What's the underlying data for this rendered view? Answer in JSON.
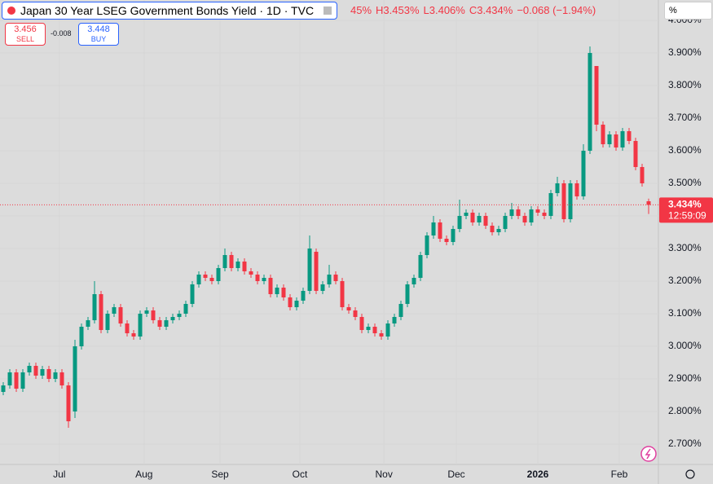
{
  "chart_data": {
    "type": "candlestick",
    "title": "Japan 30 Year LSEG Government Bonds Yield · 1D · TVC",
    "ohlc_legend": [
      "45%",
      "H3.453%",
      "L3.406%",
      "C3.434%",
      "−0.068 (−1.94%)"
    ],
    "sell": {
      "price": "3.456",
      "label": "SELL"
    },
    "spread": "-0.008",
    "buy": {
      "price": "3.448",
      "label": "BUY"
    },
    "scale_button": "%",
    "last_price": {
      "value": 3.434,
      "label": "3.434%"
    },
    "countdown": "12:59:09",
    "up_color": "#089981",
    "down_color": "#f23645",
    "open": [
      2.86,
      2.88,
      2.92,
      2.87,
      2.92,
      2.94,
      2.91,
      2.93,
      2.9,
      2.92,
      2.88,
      2.8,
      3.0,
      3.06,
      3.08,
      3.16,
      3.05,
      3.1,
      3.12,
      3.07,
      3.04,
      3.03,
      3.1,
      3.11,
      3.08,
      3.06,
      3.08,
      3.09,
      3.1,
      3.13,
      3.19,
      3.22,
      3.21,
      3.2,
      3.24,
      3.28,
      3.24,
      3.26,
      3.23,
      3.22,
      3.2,
      3.21,
      3.16,
      3.18,
      3.15,
      3.12,
      3.14,
      3.17,
      3.29,
      3.17,
      3.19,
      3.22,
      3.2,
      3.12,
      3.11,
      3.09,
      3.05,
      3.06,
      3.04,
      3.03,
      3.07,
      3.09,
      3.13,
      3.19,
      3.21,
      3.28,
      3.34,
      3.38,
      3.33,
      3.32,
      3.36,
      3.4,
      3.41,
      3.38,
      3.4,
      3.37,
      3.35,
      3.36,
      3.4,
      3.42,
      3.4,
      3.38,
      3.42,
      3.41,
      3.4,
      3.47,
      3.5,
      3.39,
      3.5,
      3.46,
      3.6,
      3.86,
      3.68,
      3.62,
      3.65,
      3.61,
      3.66,
      3.63,
      3.55,
      3.445
    ],
    "high": [
      2.89,
      2.93,
      2.93,
      2.93,
      2.95,
      2.95,
      2.94,
      2.94,
      2.93,
      2.93,
      2.89,
      3.02,
      3.07,
      3.09,
      3.2,
      3.17,
      3.11,
      3.13,
      3.13,
      3.08,
      3.05,
      3.11,
      3.12,
      3.12,
      3.09,
      3.09,
      3.1,
      3.11,
      3.14,
      3.2,
      3.23,
      3.23,
      3.22,
      3.25,
      3.3,
      3.29,
      3.27,
      3.27,
      3.24,
      3.23,
      3.22,
      3.22,
      3.19,
      3.19,
      3.16,
      3.15,
      3.18,
      3.34,
      3.3,
      3.2,
      3.25,
      3.23,
      3.21,
      3.13,
      3.12,
      3.1,
      3.07,
      3.07,
      3.05,
      3.08,
      3.1,
      3.14,
      3.2,
      3.22,
      3.29,
      3.35,
      3.4,
      3.39,
      3.34,
      3.37,
      3.45,
      3.42,
      3.42,
      3.41,
      3.41,
      3.38,
      3.37,
      3.41,
      3.44,
      3.43,
      3.41,
      3.43,
      3.43,
      3.42,
      3.48,
      3.52,
      3.51,
      3.51,
      3.51,
      3.62,
      3.92,
      3.86,
      3.69,
      3.66,
      3.66,
      3.67,
      3.67,
      3.64,
      3.56,
      3.453
    ],
    "low": [
      2.85,
      2.87,
      2.86,
      2.86,
      2.91,
      2.9,
      2.9,
      2.89,
      2.89,
      2.87,
      2.75,
      2.78,
      2.99,
      3.05,
      3.07,
      3.04,
      3.04,
      3.09,
      3.06,
      3.03,
      3.02,
      3.02,
      3.09,
      3.07,
      3.05,
      3.05,
      3.07,
      3.08,
      3.09,
      3.12,
      3.18,
      3.2,
      3.19,
      3.19,
      3.23,
      3.23,
      3.23,
      3.22,
      3.21,
      3.19,
      3.19,
      3.15,
      3.15,
      3.14,
      3.11,
      3.11,
      3.13,
      3.16,
      3.16,
      3.16,
      3.18,
      3.19,
      3.11,
      3.1,
      3.08,
      3.04,
      3.04,
      3.03,
      3.02,
      3.02,
      3.06,
      3.08,
      3.12,
      3.18,
      3.2,
      3.27,
      3.33,
      3.32,
      3.31,
      3.31,
      3.35,
      3.39,
      3.37,
      3.37,
      3.36,
      3.34,
      3.34,
      3.35,
      3.39,
      3.39,
      3.37,
      3.37,
      3.4,
      3.39,
      3.39,
      3.46,
      3.38,
      3.38,
      3.45,
      3.45,
      3.59,
      3.66,
      3.61,
      3.61,
      3.6,
      3.6,
      3.62,
      3.54,
      3.49,
      3.406
    ],
    "close": [
      2.88,
      2.92,
      2.87,
      2.92,
      2.94,
      2.91,
      2.93,
      2.9,
      2.92,
      2.88,
      2.77,
      3.0,
      3.06,
      3.08,
      3.16,
      3.05,
      3.1,
      3.12,
      3.07,
      3.04,
      3.03,
      3.1,
      3.11,
      3.08,
      3.06,
      3.08,
      3.09,
      3.1,
      3.13,
      3.19,
      3.22,
      3.21,
      3.2,
      3.24,
      3.28,
      3.24,
      3.26,
      3.23,
      3.22,
      3.2,
      3.21,
      3.16,
      3.18,
      3.15,
      3.12,
      3.14,
      3.17,
      3.3,
      3.17,
      3.19,
      3.22,
      3.2,
      3.12,
      3.11,
      3.09,
      3.05,
      3.06,
      3.04,
      3.03,
      3.07,
      3.09,
      3.13,
      3.19,
      3.21,
      3.28,
      3.34,
      3.38,
      3.33,
      3.32,
      3.36,
      3.4,
      3.41,
      3.38,
      3.4,
      3.37,
      3.35,
      3.36,
      3.4,
      3.42,
      3.4,
      3.38,
      3.42,
      3.41,
      3.4,
      3.47,
      3.5,
      3.39,
      3.5,
      3.46,
      3.6,
      3.9,
      3.68,
      3.62,
      3.65,
      3.61,
      3.66,
      3.63,
      3.55,
      3.5,
      3.434
    ],
    "xticks": [
      {
        "value": 8.6,
        "label": "Jul"
      },
      {
        "value": 21.6,
        "label": "Aug"
      },
      {
        "value": 33.25,
        "label": "Sep"
      },
      {
        "value": 45.5,
        "label": "Oct"
      },
      {
        "value": 58.4,
        "label": "Nov"
      },
      {
        "value": 69.5,
        "label": "Dec"
      },
      {
        "value": 82,
        "label": "2026"
      },
      {
        "value": 94.5,
        "label": "Feb"
      }
    ],
    "ylim": [
      2.6375,
      4.0625
    ],
    "yticks": [
      {
        "value": 2.7,
        "label": "2.700%"
      },
      {
        "value": 2.8,
        "label": "2.800%"
      },
      {
        "value": 2.9,
        "label": "2.900%"
      },
      {
        "value": 3.0,
        "label": "3.000%"
      },
      {
        "value": 3.1,
        "label": "3.100%"
      },
      {
        "value": 3.2,
        "label": "3.200%"
      },
      {
        "value": 3.3,
        "label": "3.300%"
      },
      {
        "value": 3.4,
        "label": "3.400%"
      },
      {
        "value": 3.5,
        "label": "3.500%"
      },
      {
        "value": 3.6,
        "label": "3.600%"
      },
      {
        "value": 3.7,
        "label": "3.700%"
      },
      {
        "value": 3.8,
        "label": "3.800%"
      },
      {
        "value": 3.9,
        "label": "3.900%"
      },
      {
        "value": 4.0,
        "label": "4.000%"
      }
    ]
  }
}
